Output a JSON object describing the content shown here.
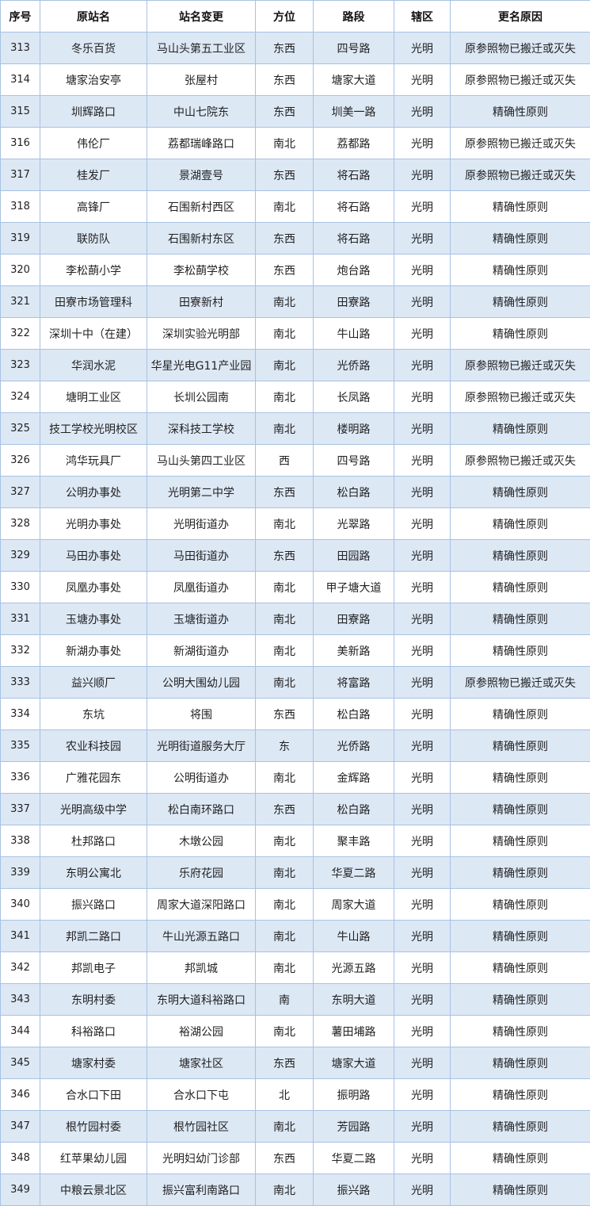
{
  "table": {
    "header": [
      "序号",
      "原站名",
      "站名变更",
      "方位",
      "路段",
      "辖区",
      "更名原因"
    ],
    "rows": [
      [
        "313",
        "冬乐百货",
        "马山头第五工业区",
        "东西",
        "四号路",
        "光明",
        "原参照物已搬迁或灭失"
      ],
      [
        "314",
        "塘家治安亭",
        "张屋村",
        "东西",
        "塘家大道",
        "光明",
        "原参照物已搬迁或灭失"
      ],
      [
        "315",
        "圳辉路口",
        "中山七院东",
        "东西",
        "圳美一路",
        "光明",
        "精确性原则"
      ],
      [
        "316",
        "伟伦厂",
        "荔都瑞峰路口",
        "南北",
        "荔都路",
        "光明",
        "原参照物已搬迁或灭失"
      ],
      [
        "317",
        "桂发厂",
        "景湖壹号",
        "东西",
        "将石路",
        "光明",
        "原参照物已搬迁或灭失"
      ],
      [
        "318",
        "高锋厂",
        "石围新村西区",
        "南北",
        "将石路",
        "光明",
        "精确性原则"
      ],
      [
        "319",
        "联防队",
        "石围新村东区",
        "东西",
        "将石路",
        "光明",
        "精确性原则"
      ],
      [
        "320",
        "李松蓢小学",
        "李松蓢学校",
        "东西",
        "炮台路",
        "光明",
        "精确性原则"
      ],
      [
        "321",
        "田寮市场管理科",
        "田寮新村",
        "南北",
        "田寮路",
        "光明",
        "精确性原则"
      ],
      [
        "322",
        "深圳十中（在建）",
        "深圳实验光明部",
        "南北",
        "牛山路",
        "光明",
        "精确性原则"
      ],
      [
        "323",
        "华润水泥",
        "华星光电G11产业园",
        "南北",
        "光侨路",
        "光明",
        "原参照物已搬迁或灭失"
      ],
      [
        "324",
        "塘明工业区",
        "长圳公园南",
        "南北",
        "长凤路",
        "光明",
        "原参照物已搬迁或灭失"
      ],
      [
        "325",
        "技工学校光明校区",
        "深科技工学校",
        "南北",
        "楼明路",
        "光明",
        "精确性原则"
      ],
      [
        "326",
        "鸿华玩具厂",
        "马山头第四工业区",
        "西",
        "四号路",
        "光明",
        "原参照物已搬迁或灭失"
      ],
      [
        "327",
        "公明办事处",
        "光明第二中学",
        "东西",
        "松白路",
        "光明",
        "精确性原则"
      ],
      [
        "328",
        "光明办事处",
        "光明街道办",
        "南北",
        "光翠路",
        "光明",
        "精确性原则"
      ],
      [
        "329",
        "马田办事处",
        "马田街道办",
        "东西",
        "田园路",
        "光明",
        "精确性原则"
      ],
      [
        "330",
        "凤凰办事处",
        "凤凰街道办",
        "南北",
        "甲子塘大道",
        "光明",
        "精确性原则"
      ],
      [
        "331",
        "玉塘办事处",
        "玉塘街道办",
        "南北",
        "田寮路",
        "光明",
        "精确性原则"
      ],
      [
        "332",
        "新湖办事处",
        "新湖街道办",
        "南北",
        "美新路",
        "光明",
        "精确性原则"
      ],
      [
        "333",
        "益兴顺厂",
        "公明大围幼儿园",
        "南北",
        "将富路",
        "光明",
        "原参照物已搬迁或灭失"
      ],
      [
        "334",
        "东坑",
        "将围",
        "东西",
        "松白路",
        "光明",
        "精确性原则"
      ],
      [
        "335",
        "农业科技园",
        "光明街道服务大厅",
        "东",
        "光侨路",
        "光明",
        "精确性原则"
      ],
      [
        "336",
        "广雅花园东",
        "公明街道办",
        "南北",
        "金辉路",
        "光明",
        "精确性原则"
      ],
      [
        "337",
        "光明高级中学",
        "松白南环路口",
        "东西",
        "松白路",
        "光明",
        "精确性原则"
      ],
      [
        "338",
        "杜邦路口",
        "木墩公园",
        "南北",
        "聚丰路",
        "光明",
        "精确性原则"
      ],
      [
        "339",
        "东明公寓北",
        "乐府花园",
        "南北",
        "华夏二路",
        "光明",
        "精确性原则"
      ],
      [
        "340",
        "振兴路口",
        "周家大道深阳路口",
        "南北",
        "周家大道",
        "光明",
        "精确性原则"
      ],
      [
        "341",
        "邦凯二路口",
        "牛山光源五路口",
        "南北",
        "牛山路",
        "光明",
        "精确性原则"
      ],
      [
        "342",
        "邦凯电子",
        "邦凯城",
        "南北",
        "光源五路",
        "光明",
        "精确性原则"
      ],
      [
        "343",
        "东明村委",
        "东明大道科裕路口",
        "南",
        "东明大道",
        "光明",
        "精确性原则"
      ],
      [
        "344",
        "科裕路口",
        "裕湖公园",
        "南北",
        "薯田埔路",
        "光明",
        "精确性原则"
      ],
      [
        "345",
        "塘家村委",
        "塘家社区",
        "东西",
        "塘家大道",
        "光明",
        "精确性原则"
      ],
      [
        "346",
        "合水口下田",
        "合水口下屯",
        "北",
        "振明路",
        "光明",
        "精确性原则"
      ],
      [
        "347",
        "根竹园村委",
        "根竹园社区",
        "南北",
        "芳园路",
        "光明",
        "精确性原则"
      ],
      [
        "348",
        "红苹果幼儿园",
        "光明妇幼门诊部",
        "东西",
        "华夏二路",
        "光明",
        "精确性原则"
      ],
      [
        "349",
        "中粮云景北区",
        "振兴富利南路口",
        "南北",
        "振兴路",
        "光明",
        "精确性原则"
      ]
    ]
  }
}
